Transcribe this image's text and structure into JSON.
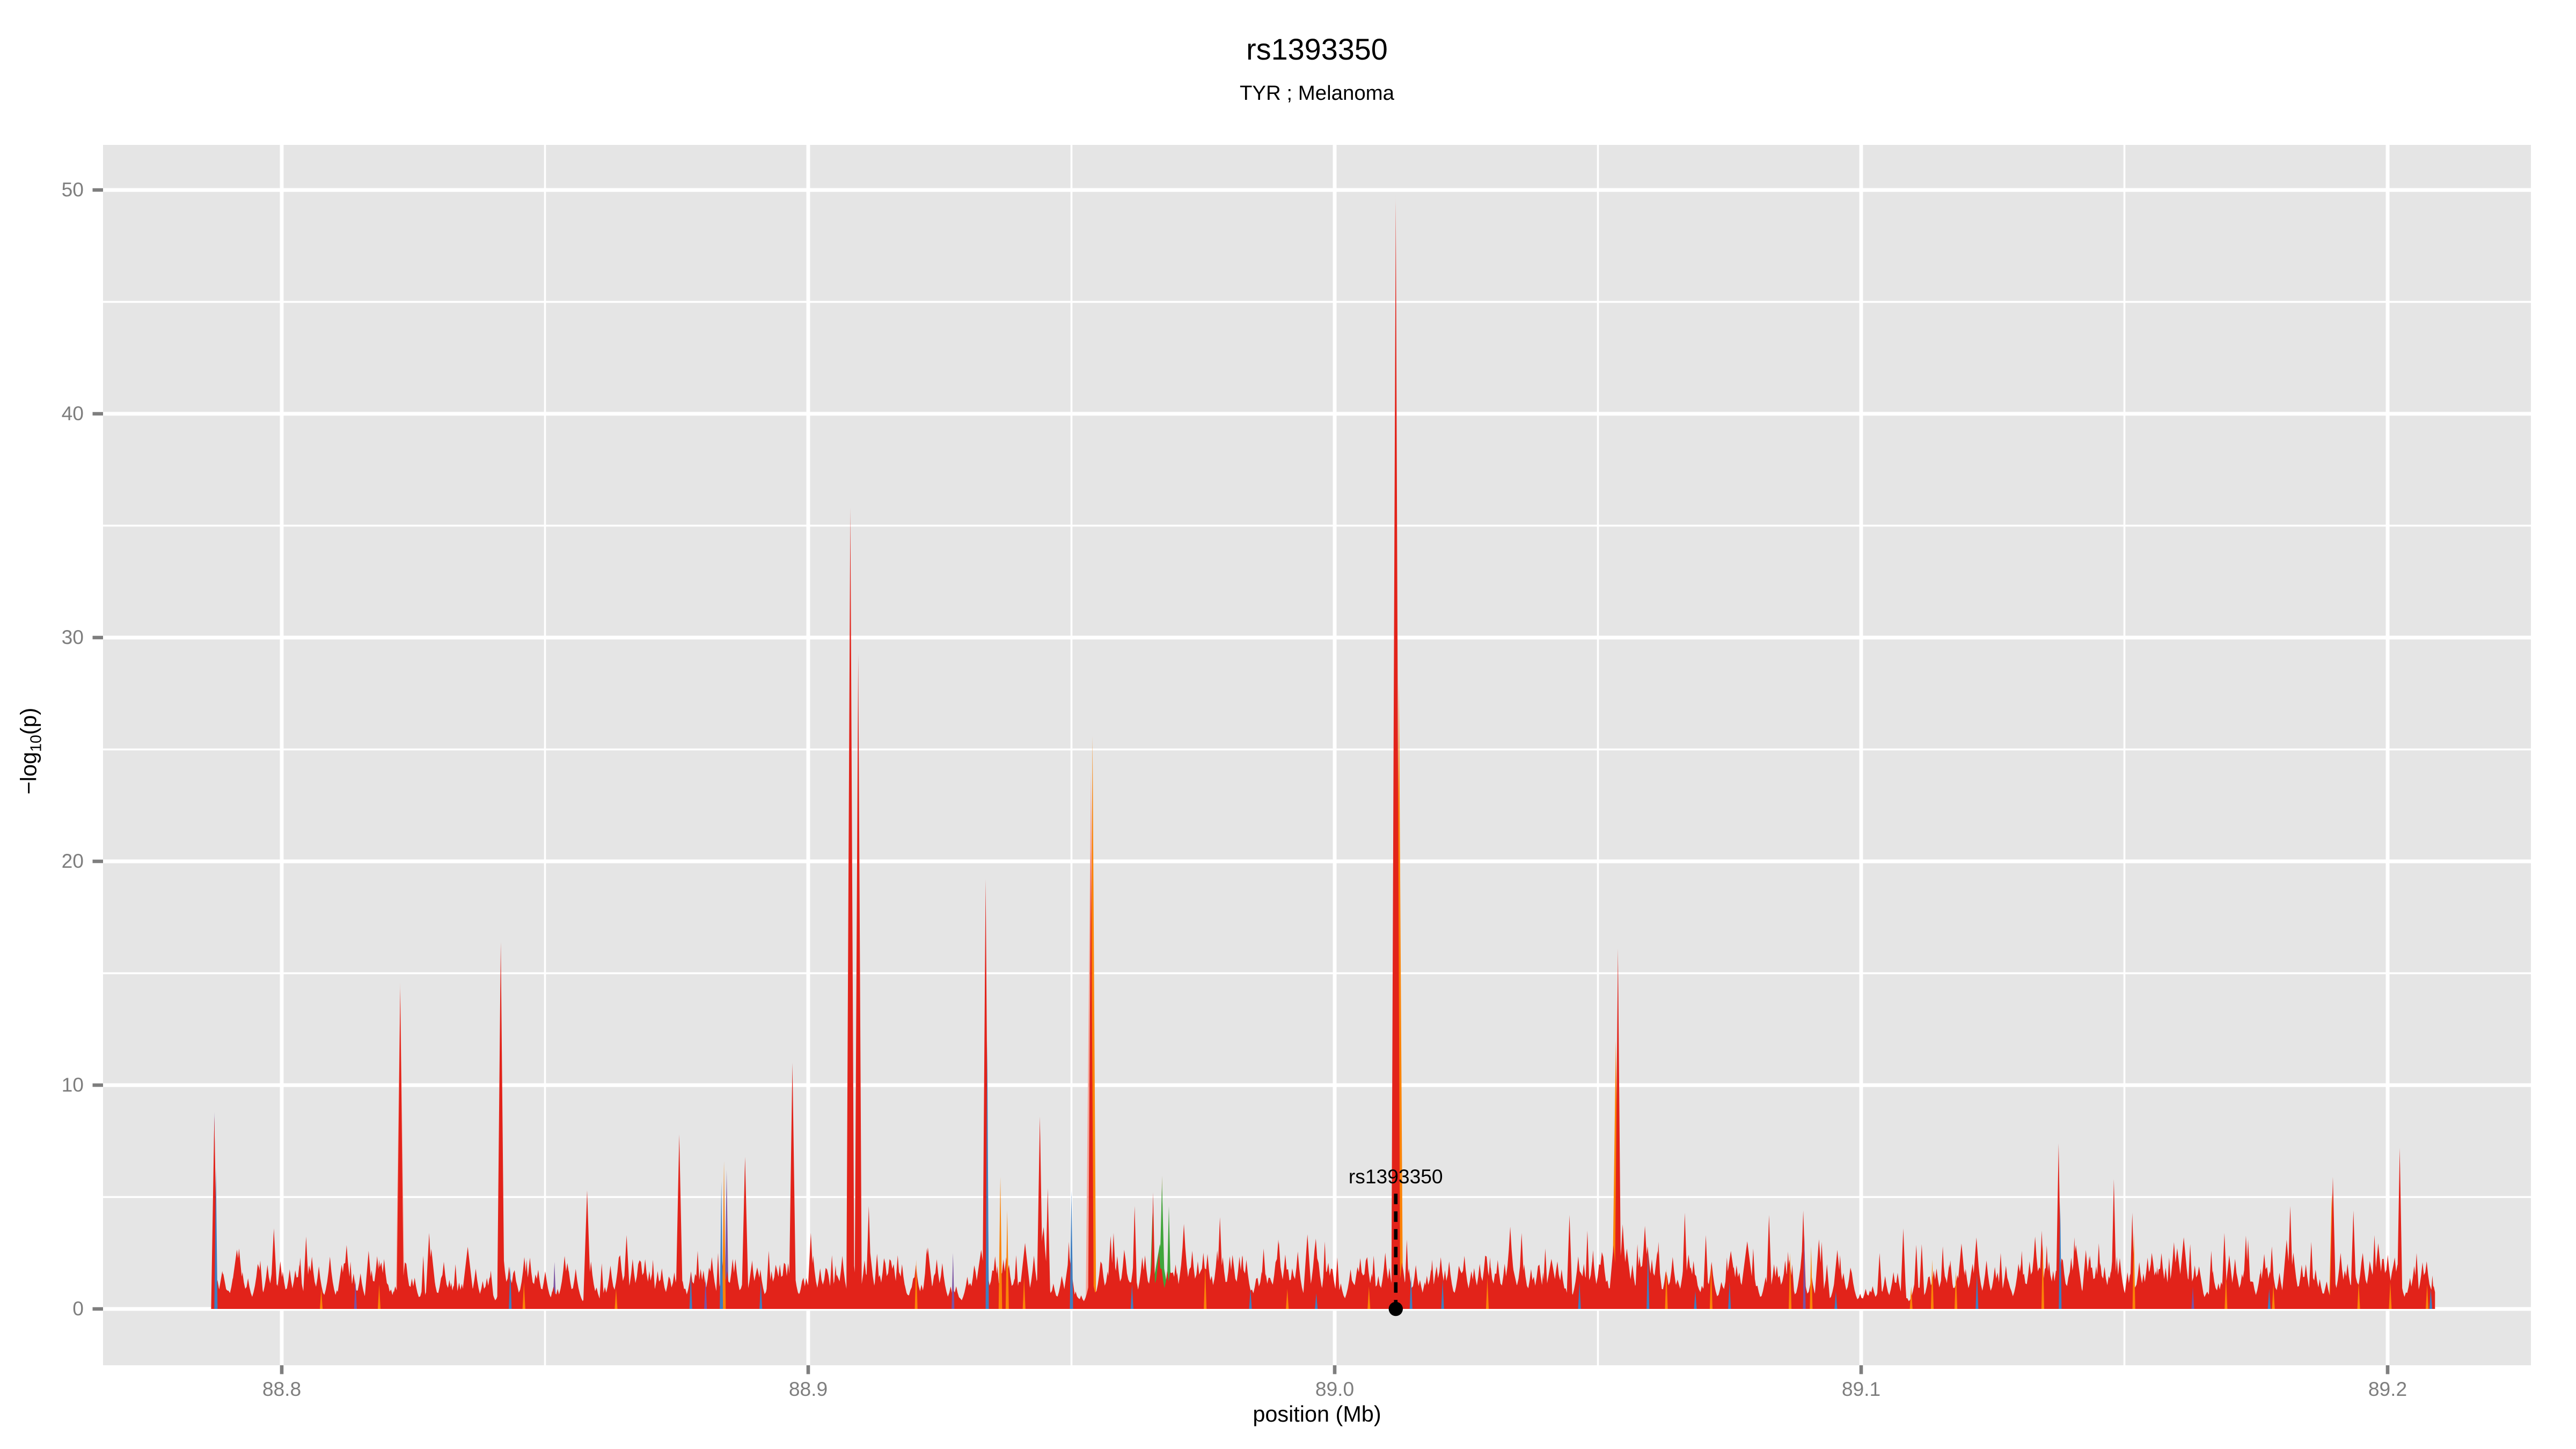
{
  "header": {
    "title": "rs1393350",
    "subtitle": "TYR ; Melanoma"
  },
  "chart_data": {
    "type": "area",
    "title": "rs1393350",
    "subtitle": "TYR ; Melanoma",
    "xlabel": "position (Mb)",
    "ylabel_parts": {
      "pre": "−log",
      "sub": "10",
      "post": "(p)"
    },
    "xlim": [
      88.766,
      89.228
    ],
    "ylim": [
      -2.5,
      52
    ],
    "x_domain": [
      88.787,
      89.209
    ],
    "grid": "on",
    "legend": "none",
    "x_ticks": [
      {
        "v": 88.8,
        "label": "88.8"
      },
      {
        "v": 88.9,
        "label": "88.9"
      },
      {
        "v": 89.0,
        "label": "89.0"
      },
      {
        "v": 89.1,
        "label": "89.1"
      },
      {
        "v": 89.2,
        "label": "89.2"
      }
    ],
    "y_ticks": [
      {
        "v": 0,
        "label": "0"
      },
      {
        "v": 10,
        "label": "10"
      },
      {
        "v": 20,
        "label": "20"
      },
      {
        "v": 30,
        "label": "30"
      },
      {
        "v": 40,
        "label": "40"
      },
      {
        "v": 50,
        "label": "50"
      }
    ],
    "x_minor": [
      88.85,
      88.95,
      89.05,
      89.15
    ],
    "y_minor": [
      5,
      15,
      25,
      35,
      45
    ],
    "colors": {
      "red": "#E2231A",
      "orange": "#FB8307",
      "green": "#3FA53B",
      "olive": "#7F8C28",
      "purple": "#7B52A3",
      "blue": "#3F7EC0",
      "salmon": "#F5A79B",
      "panel": "#E5E5E5",
      "grid": "#FFFFFF",
      "tick": "#7E7E7E",
      "text": "#000000"
    },
    "annotation": {
      "label": "rs1393350",
      "x": 89.0116,
      "marker_value": 0,
      "line_top_value": 5.15
    },
    "peaks_pre": {
      "salmon": [
        [
          88.8225,
          14.6,
          5.5
        ],
        [
          88.9537,
          24.0,
          6.5
        ],
        [
          89.0116,
          49.8,
          3.2
        ]
      ],
      "olive": [
        [
          88.9672,
          5.95,
          2.6
        ]
      ],
      "green": [
        [
          88.9668,
          2.9,
          14
        ],
        [
          88.9654,
          4.3,
          4
        ],
        [
          88.9672,
          5.6,
          4
        ],
        [
          88.9685,
          4.6,
          3
        ]
      ],
      "purple": [
        [
          88.7872,
          8.8,
          3
        ],
        [
          88.8518,
          2.1,
          2.2
        ],
        [
          88.8845,
          6.2,
          2.5
        ],
        [
          88.9663,
          1.9,
          2
        ]
      ],
      "orange": [
        [
          88.954,
          25.6,
          4.5
        ],
        [
          89.0122,
          28.0,
          5
        ],
        [
          89.0534,
          12.0,
          4.5
        ],
        [
          89.1894,
          5.2,
          3.5
        ]
      ]
    },
    "peaks_red": [
      [
        88.7872,
        8.6,
        4
      ],
      [
        88.7985,
        3.6,
        5
      ],
      [
        88.8035,
        2.3,
        4
      ],
      [
        88.8165,
        2.6,
        6
      ],
      [
        88.8185,
        2.2,
        5
      ],
      [
        88.8225,
        14.3,
        4.5
      ],
      [
        88.828,
        3.4,
        5
      ],
      [
        88.833,
        2.0,
        4
      ],
      [
        88.8416,
        16.4,
        4.5
      ],
      [
        88.8465,
        2.2,
        4
      ],
      [
        88.858,
        5.3,
        5
      ],
      [
        88.8655,
        3.3,
        5
      ],
      [
        88.8705,
        2.2,
        4
      ],
      [
        88.8755,
        7.8,
        4.5
      ],
      [
        88.879,
        2.6,
        4
      ],
      [
        88.888,
        6.8,
        4.5
      ],
      [
        88.8925,
        2.6,
        4
      ],
      [
        88.897,
        11.0,
        4.5
      ],
      [
        88.9005,
        3.4,
        5
      ],
      [
        88.9045,
        2.4,
        4
      ],
      [
        88.908,
        35.8,
        5
      ],
      [
        88.9095,
        29.3,
        4.5
      ],
      [
        88.9115,
        4.6,
        4
      ],
      [
        88.917,
        2.4,
        5
      ],
      [
        88.9225,
        2.7,
        5
      ],
      [
        88.9337,
        19.2,
        4
      ],
      [
        88.9395,
        2.4,
        4
      ],
      [
        88.944,
        8.6,
        4
      ],
      [
        88.9455,
        5.4,
        3.5
      ],
      [
        88.9495,
        3.0,
        4
      ],
      [
        88.9537,
        20.5,
        3.5
      ],
      [
        88.958,
        3.4,
        4.5
      ],
      [
        88.962,
        4.6,
        3.5
      ],
      [
        88.9655,
        5.2,
        3
      ],
      [
        88.9715,
        3.1,
        4
      ],
      [
        88.9782,
        4.1,
        4.5
      ],
      [
        88.9825,
        2.4,
        4
      ],
      [
        88.9865,
        2.7,
        5
      ],
      [
        88.993,
        2.1,
        4
      ],
      [
        89.0005,
        2.3,
        4
      ],
      [
        89.006,
        1.8,
        4
      ],
      [
        89.0116,
        49.5,
        5.5
      ],
      [
        89.0137,
        3.1,
        3.5
      ],
      [
        89.0185,
        2.2,
        4
      ],
      [
        89.0245,
        2.0,
        4
      ],
      [
        89.0295,
        2.3,
        4
      ],
      [
        89.0355,
        3.4,
        4.5
      ],
      [
        89.04,
        2.7,
        4
      ],
      [
        89.0446,
        4.2,
        4
      ],
      [
        89.048,
        3.5,
        3.5
      ],
      [
        89.0538,
        16.1,
        4
      ],
      [
        89.0575,
        2.9,
        3.5
      ],
      [
        89.0615,
        3.0,
        4
      ],
      [
        89.0665,
        4.3,
        4
      ],
      [
        89.0705,
        3.3,
        4
      ],
      [
        89.0745,
        2.3,
        4
      ],
      [
        89.0795,
        2.7,
        4
      ],
      [
        89.0825,
        4.2,
        4
      ],
      [
        89.089,
        4.4,
        4
      ],
      [
        89.0925,
        3.0,
        4
      ],
      [
        89.096,
        2.4,
        4
      ],
      [
        89.1035,
        2.5,
        4
      ],
      [
        89.108,
        3.6,
        4
      ],
      [
        89.1115,
        2.9,
        4
      ],
      [
        89.1155,
        2.8,
        4
      ],
      [
        89.1265,
        2.5,
        4
      ],
      [
        89.1305,
        2.6,
        4
      ],
      [
        89.1343,
        3.5,
        4
      ],
      [
        89.1375,
        7.4,
        3.5
      ],
      [
        89.1405,
        3.2,
        3.5
      ],
      [
        89.1435,
        2.4,
        4
      ],
      [
        89.148,
        5.8,
        3.5
      ],
      [
        89.1515,
        4.3,
        3.5
      ],
      [
        89.1585,
        2.3,
        4
      ],
      [
        89.1625,
        2.9,
        4
      ],
      [
        89.1665,
        2.6,
        4
      ],
      [
        89.169,
        3.4,
        4
      ],
      [
        89.1735,
        3.1,
        4
      ],
      [
        89.178,
        2.8,
        4.5
      ],
      [
        89.1815,
        4.6,
        4
      ],
      [
        89.1855,
        3.0,
        4
      ],
      [
        89.1896,
        5.9,
        4
      ],
      [
        89.1935,
        4.4,
        4
      ],
      [
        89.1975,
        3.3,
        4
      ],
      [
        89.2023,
        7.2,
        3.5
      ],
      [
        89.2055,
        2.5,
        4
      ],
      [
        89.2085,
        1.5,
        3
      ]
    ],
    "peaks_post": {
      "orange": [
        [
          88.8075,
          0.9
        ],
        [
          88.8185,
          1.1
        ],
        [
          88.846,
          1.2
        ],
        [
          88.8635,
          0.9
        ],
        [
          88.884,
          6.6,
          2.2
        ],
        [
          88.9205,
          2.2
        ],
        [
          88.9365,
          5.9,
          2.2
        ],
        [
          88.9378,
          4.4,
          2
        ],
        [
          88.941,
          1.4
        ],
        [
          88.9754,
          1.9
        ],
        [
          88.991,
          0.9
        ],
        [
          89.0065,
          1.0
        ],
        [
          89.029,
          1.4
        ],
        [
          89.063,
          1.8
        ],
        [
          89.0715,
          2.0
        ],
        [
          89.0865,
          2.5
        ],
        [
          89.0905,
          2.8
        ],
        [
          89.1095,
          1.0
        ],
        [
          89.1135,
          2.2
        ],
        [
          89.118,
          1.7
        ],
        [
          89.1345,
          2.9
        ],
        [
          89.1518,
          3.4
        ],
        [
          89.1693,
          1.5
        ],
        [
          89.1783,
          1.1
        ],
        [
          89.1945,
          1.2
        ],
        [
          89.2005,
          1.2
        ],
        [
          89.2075,
          1.1
        ]
      ],
      "purple": [
        [
          88.814,
          1.3
        ],
        [
          88.8805,
          1.4
        ],
        [
          88.9275,
          2.5
        ],
        [
          89.0892,
          3.3
        ],
        [
          89.163,
          1.0
        ]
      ],
      "blue": [
        [
          88.7875,
          6.3,
          2
        ],
        [
          88.8434,
          1.9
        ],
        [
          88.8777,
          1.6
        ],
        [
          88.8835,
          5.7,
          2
        ],
        [
          88.891,
          1.2
        ],
        [
          88.934,
          12.0,
          2
        ],
        [
          88.95,
          5.3,
          2
        ],
        [
          88.9615,
          1.1
        ],
        [
          88.984,
          0.9
        ],
        [
          88.9965,
          0.7
        ],
        [
          89.0145,
          1.5
        ],
        [
          89.0205,
          1.3
        ],
        [
          89.0465,
          1.2
        ],
        [
          89.0595,
          2.6
        ],
        [
          89.0685,
          0.8
        ],
        [
          89.075,
          1.2
        ],
        [
          89.0952,
          0.8
        ],
        [
          89.122,
          1.6
        ],
        [
          89.1378,
          4.8
        ],
        [
          89.1775,
          0.9
        ],
        [
          89.2082,
          0.9
        ]
      ]
    },
    "noise": {
      "seed": 1393350,
      "points": 1600,
      "base_amp": 2.4,
      "spike_prob": 0.05,
      "spike_amp": 1.7,
      "min_h": 0.14,
      "decay": 0.72,
      "bump_count": 160,
      "bump_h": [
        0.7,
        3.3
      ],
      "bump_w": [
        3,
        11
      ],
      "dense_zones": [
        [
          88.952,
          89.005,
          1.12
        ],
        [
          89.155,
          89.202,
          1.08
        ]
      ],
      "quiet_zones": [
        [
          88.787,
          88.8,
          0.85
        ],
        [
          89.098,
          89.107,
          0.7
        ]
      ]
    }
  }
}
